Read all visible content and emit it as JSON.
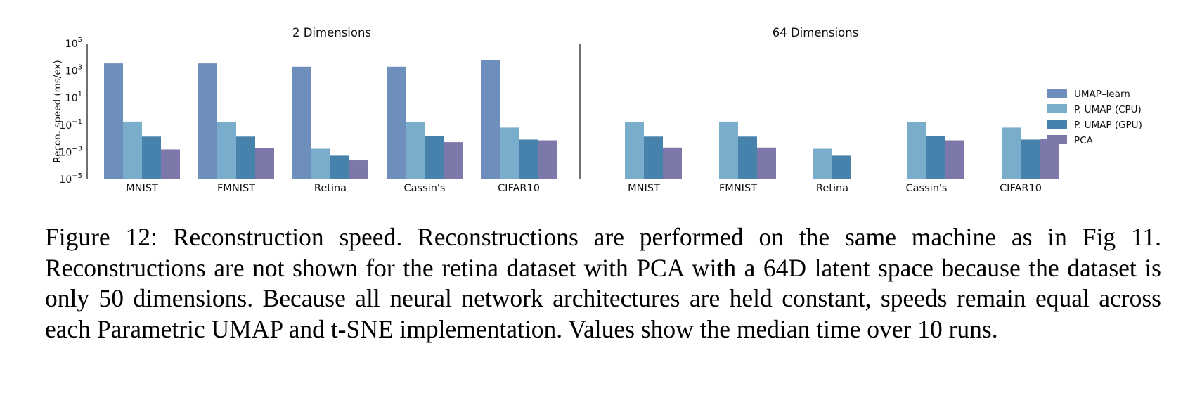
{
  "chart_data": {
    "type": "bar",
    "ylabel": "Recon. speed (ms/ex)",
    "yscale": "log",
    "ylim": [
      1e-05,
      100000.0
    ],
    "yticks": [
      {
        "base": "10",
        "exp": "5",
        "value": 100000
      },
      {
        "base": "10",
        "exp": "3",
        "value": 1000
      },
      {
        "base": "10",
        "exp": "1",
        "value": 10
      },
      {
        "base": "10",
        "exp": "−1",
        "value": 0.1
      },
      {
        "base": "10",
        "exp": "−3",
        "value": 0.001
      },
      {
        "base": "10",
        "exp": "−5",
        "value": 1e-05
      }
    ],
    "legend_position": "right",
    "series_colors": [
      "#6e8fbb",
      "#7aaccc",
      "#4782ac",
      "#7c78aa"
    ],
    "panels": [
      {
        "title": "2 Dimensions",
        "categories": [
          "MNIST",
          "FMNIST",
          "Retina",
          "Cassin's",
          "CIFAR10"
        ],
        "series": [
          {
            "name": "UMAP–learn",
            "values": [
              3500,
              3500,
              2000,
              2000,
              6000
            ]
          },
          {
            "name": "P. UMAP (CPU)",
            "values": [
              0.18,
              0.16,
              0.0018,
              0.16,
              0.065
            ]
          },
          {
            "name": "P. UMAP (GPU)",
            "values": [
              0.014,
              0.014,
              0.00055,
              0.016,
              0.0085
            ]
          },
          {
            "name": "PCA",
            "values": [
              0.0016,
              0.002,
              0.00025,
              0.0055,
              0.0075
            ]
          }
        ]
      },
      {
        "title": "64 Dimensions",
        "categories": [
          "MNIST",
          "FMNIST",
          "Retina",
          "Cassin's",
          "CIFAR10"
        ],
        "series": [
          {
            "name": "UMAP–learn",
            "values": [
              null,
              null,
              null,
              null,
              null
            ]
          },
          {
            "name": "P. UMAP (CPU)",
            "values": [
              0.16,
              0.18,
              0.0018,
              0.16,
              0.065
            ]
          },
          {
            "name": "P. UMAP (GPU)",
            "values": [
              0.014,
              0.014,
              0.00055,
              0.016,
              0.0085
            ]
          },
          {
            "name": "PCA",
            "values": [
              0.0022,
              0.0022,
              null,
              0.0075,
              0.0095
            ]
          }
        ]
      }
    ]
  },
  "caption": "Figure 12: Reconstruction speed. Reconstructions are performed on the same machine as in Fig 11. Reconstructions are not shown for the retina dataset with PCA with a 64D latent space because the dataset is only 50 dimensions. Because all neural network architectures are held constant, speeds remain equal across each Parametric UMAP and t-SNE implementation. Values show the median time over 10 runs."
}
